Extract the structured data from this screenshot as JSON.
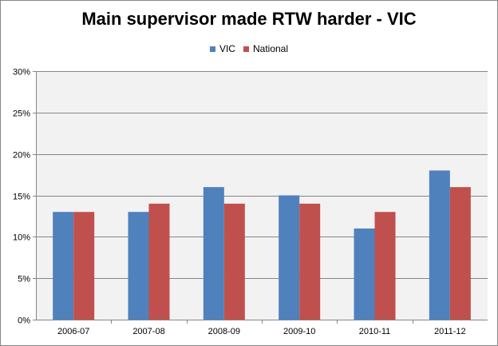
{
  "colors": {
    "vic": "#4F81BD",
    "national": "#C0504D",
    "plot_background": "#F2F2F2",
    "gridline": "#868686"
  },
  "chart_data": {
    "type": "bar",
    "title": "Main supervisor made RTW harder - VIC",
    "categories": [
      "2006-07",
      "2007-08",
      "2008-09",
      "2009-10",
      "2010-11",
      "2011-12"
    ],
    "series": [
      {
        "name": "VIC",
        "values": [
          13,
          13,
          16,
          15,
          11,
          18
        ]
      },
      {
        "name": "National",
        "values": [
          13,
          14,
          14,
          14,
          13,
          16
        ]
      }
    ],
    "y_ticks": [
      "0%",
      "5%",
      "10%",
      "15%",
      "20%",
      "25%",
      "30%"
    ],
    "ylim": [
      0,
      30
    ],
    "grid": true,
    "legend_position": "top"
  }
}
